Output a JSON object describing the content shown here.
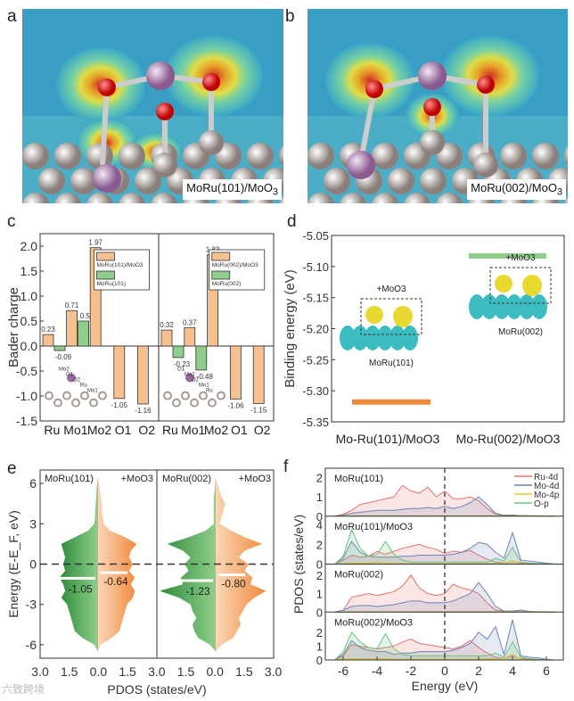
{
  "panels": {
    "a": {
      "label": "a",
      "tag": "MoRu(101)/MoO",
      "tag_sub": "3"
    },
    "b": {
      "label": "b",
      "tag": "MoRu(002)/MoO",
      "tag_sub": "3"
    },
    "c": {
      "label": "c"
    },
    "d": {
      "label": "d"
    },
    "e": {
      "label": "e"
    },
    "f": {
      "label": "f"
    }
  },
  "watermark": "六致跨境",
  "colors": {
    "orange": "#f7c08f",
    "orange_dark": "#ef8a3c",
    "green": "#8fce8a",
    "green_dark": "#2e8b3c",
    "ru4d": "#e5726b",
    "mo4d": "#6d83b8",
    "mo4p": "#f0c22a",
    "op": "#6cc47c"
  },
  "chart_data": [
    {
      "panel": "c",
      "type": "bar",
      "ylabel": "Bader charge",
      "ylim": [
        -1.5,
        2.25
      ],
      "yticks": [
        -1.5,
        -1.0,
        -0.5,
        0.0,
        0.5,
        1.0,
        1.5,
        2.0
      ],
      "groups": [
        {
          "categories": [
            "Ru",
            "Mo1",
            "Mo2",
            "O1",
            "O2"
          ],
          "series": [
            {
              "name": "MoRu(101)/MoO3",
              "values": [
                0.23,
                0.71,
                1.97,
                -1.05,
                -1.16
              ]
            },
            {
              "name": "MoRu(101)",
              "values": [
                -0.09,
                0.5,
                null,
                null,
                null
              ]
            }
          ],
          "inset_labels": [
            "Mo2",
            "O1",
            "O2",
            "Ru",
            "Mo1"
          ]
        },
        {
          "categories": [
            "Ru",
            "Mo1",
            "Mo2",
            "O1",
            "O2"
          ],
          "series": [
            {
              "name": "MoRu(002)/MoO3",
              "values": [
                0.32,
                0.37,
                1.83,
                -1.06,
                -1.15
              ]
            },
            {
              "name": "MoRu(002)",
              "values": [
                -0.23,
                -0.48,
                null,
                null,
                null
              ]
            }
          ],
          "inset_labels": [
            "O1",
            "Mo2",
            "O2",
            "Mo1",
            "Ru"
          ]
        }
      ]
    },
    {
      "panel": "d",
      "type": "bar",
      "ylabel": "Binding energy (eV)",
      "ylim": [
        -5.35,
        -5.05
      ],
      "yticks": [
        -5.35,
        -5.3,
        -5.25,
        -5.2,
        -5.15,
        -5.1,
        -5.05
      ],
      "categories": [
        "Mo-Ru(101)/MoO3",
        "Mo-Ru(002)/MoO3"
      ],
      "values": [
        -5.318,
        -5.083
      ],
      "insets": [
        {
          "title": "+MoO3",
          "label": "MoRu(101)"
        },
        {
          "title": "+MoO3",
          "label": "MoRu(002)"
        }
      ]
    },
    {
      "panel": "e",
      "type": "area",
      "ylabel": "Energy (E-E_F, eV)",
      "xlabel": "PDOS (states/eV)",
      "ylim": [
        -7,
        7
      ],
      "yticks": [
        -6,
        -3,
        0,
        3,
        6
      ],
      "xticks": [
        "3.0",
        "1.5",
        "0.0",
        "1.5",
        "3.0",
        "1.5",
        "0.0",
        "1.5",
        "3.0"
      ],
      "energies": [
        -6.5,
        -6,
        -5.5,
        -5,
        -4.5,
        -4,
        -3.5,
        -3,
        -2.5,
        -2,
        -1.5,
        -1,
        -0.5,
        0,
        0.5,
        1,
        1.5,
        2,
        2.5,
        3,
        3.5,
        4,
        4.5,
        5,
        5.5,
        6,
        6.5
      ],
      "subplots": [
        {
          "left_label": "MoRu(101)",
          "right_label": "+MoO3",
          "left_center": -1.05,
          "right_center": -0.64,
          "left": [
            0,
            0.2,
            0.8,
            1.2,
            1.3,
            1.4,
            1.5,
            1.6,
            1.9,
            1.7,
            1.8,
            2.0,
            1.7,
            1.8,
            1.7,
            1.8,
            1.9,
            1.2,
            0.5,
            0.2,
            0.15,
            0.15,
            0.12,
            0.1,
            0.08,
            0.05,
            0
          ],
          "right": [
            0,
            0.15,
            0.7,
            1.1,
            1.2,
            1.3,
            1.4,
            1.5,
            1.8,
            1.9,
            1.7,
            1.9,
            1.6,
            1.8,
            1.6,
            1.7,
            2.0,
            1.4,
            0.6,
            0.3,
            0.25,
            0.2,
            0.2,
            0.15,
            0.1,
            0.05,
            0
          ]
        },
        {
          "left_label": "MoRu(002)",
          "right_label": "+MoO3",
          "left_center": -1.23,
          "right_center": -0.8,
          "left": [
            0,
            0.3,
            0.9,
            1.1,
            1.2,
            1.0,
            1.2,
            1.3,
            1.9,
            2.9,
            1.7,
            1.8,
            1.4,
            1.6,
            1.3,
            1.7,
            2.5,
            1.4,
            0.5,
            0.1,
            0.1,
            0.1,
            0.1,
            0.1,
            0.05,
            0.03,
            0
          ],
          "right": [
            0,
            0.3,
            0.9,
            1.1,
            1.3,
            1.2,
            1.4,
            1.6,
            2.0,
            2.6,
            1.8,
            1.9,
            1.5,
            1.7,
            1.2,
            1.5,
            2.4,
            1.5,
            0.8,
            0.2,
            0.3,
            0.4,
            0.5,
            0.3,
            0.2,
            0.1,
            0
          ]
        }
      ]
    },
    {
      "panel": "f",
      "type": "area",
      "xlabel": "Energy (eV)",
      "ylabel": "PDOS (states/eV)",
      "xlim": [
        -7,
        7
      ],
      "xticks": [
        -6,
        -4,
        -2,
        0,
        2,
        4,
        6
      ],
      "legend": [
        "Ru-4d",
        "Mo-4d",
        "Mo-4p",
        "O-p"
      ],
      "legend_position": "top-right",
      "energies": [
        -6.5,
        -6,
        -5.5,
        -5,
        -4.5,
        -4,
        -3.5,
        -3,
        -2.5,
        -2,
        -1.5,
        -1,
        -0.5,
        0,
        0.5,
        1,
        1.5,
        2,
        2.5,
        3,
        3.5,
        4,
        4.5,
        5,
        5.5,
        6,
        6.5
      ],
      "subplots": [
        {
          "label": "MoRu(101)",
          "ylim": [
            0,
            2.3
          ],
          "yticks": [
            0,
            1,
            2
          ],
          "Ru-4d": [
            0,
            0.1,
            0.3,
            0.6,
            0.7,
            0.8,
            0.9,
            1.0,
            1.6,
            1.3,
            1.2,
            1.5,
            1.0,
            1.3,
            0.9,
            0.9,
            1.0,
            0.8,
            0.4,
            0.1,
            0.05,
            0.05,
            0.03,
            0.02,
            0.02,
            0.01,
            0
          ],
          "Mo-4d": [
            0,
            0.05,
            0.15,
            0.2,
            0.25,
            0.3,
            0.3,
            0.3,
            0.35,
            0.4,
            0.4,
            0.45,
            0.4,
            0.5,
            0.4,
            0.5,
            0.7,
            1.0,
            0.6,
            0.15,
            0.05,
            0.05,
            0.03,
            0.02,
            0.02,
            0.01,
            0
          ],
          "Mo-4p": [
            0,
            0.02,
            0.02,
            0.02,
            0.02,
            0.02,
            0.02,
            0.02,
            0.02,
            0.02,
            0.02,
            0.02,
            0.02,
            0.02,
            0.02,
            0.02,
            0.02,
            0.02,
            0.02,
            0.02,
            0.02,
            0.02,
            0.02,
            0.02,
            0.02,
            0.02,
            0
          ],
          "O-p": [
            0,
            0,
            0,
            0,
            0,
            0,
            0,
            0,
            0,
            0,
            0,
            0,
            0,
            0,
            0,
            0,
            0,
            0,
            0,
            0,
            0,
            0,
            0,
            0,
            0,
            0,
            0
          ]
        },
        {
          "label": "MoRu(101)/MoO3",
          "ylim": [
            0,
            4.5
          ],
          "yticks": [
            0,
            2,
            4
          ],
          "Ru-4d": [
            0,
            0.4,
            0.9,
            0.7,
            0.8,
            1.3,
            1.0,
            1.3,
            1.6,
            1.8,
            2.0,
            1.7,
            1.5,
            1.1,
            1.3,
            1.2,
            1.4,
            0.9,
            0.5,
            0.2,
            0.1,
            0.3,
            0.1,
            0.05,
            0.03,
            0.02,
            0
          ],
          "Mo-4d": [
            0,
            0.6,
            2.3,
            1.2,
            0.8,
            0.7,
            0.7,
            0.7,
            0.8,
            0.8,
            0.9,
            0.9,
            0.9,
            0.9,
            1.0,
            1.2,
            1.6,
            2.2,
            2.0,
            1.2,
            0.6,
            3.2,
            0.4,
            0.3,
            0.2,
            0.1,
            0
          ],
          "Mo-4p": [
            0,
            0.05,
            0.1,
            0.1,
            0.1,
            0.2,
            0.1,
            0.05,
            0.05,
            0.05,
            0.05,
            0.05,
            0.05,
            0.05,
            0.05,
            0.05,
            0.05,
            0.05,
            0.05,
            0.05,
            0.1,
            0.3,
            0.05,
            0.02,
            0.02,
            0.01,
            0
          ],
          "O-p": [
            0,
            0.8,
            3.5,
            1.6,
            0.8,
            1.0,
            2.3,
            1.0,
            0.4,
            0.2,
            0.2,
            0.2,
            0.2,
            0.2,
            0.2,
            0.2,
            0.2,
            0.2,
            0.2,
            0.6,
            0.3,
            1.7,
            0.2,
            0.1,
            0.05,
            0.02,
            0
          ]
        },
        {
          "label": "MoRu(002)",
          "ylim": [
            0,
            2.4
          ],
          "yticks": [
            0,
            1,
            2
          ],
          "Ru-4d": [
            0,
            0.1,
            0.8,
            0.9,
            1.0,
            0.9,
            1.0,
            1.1,
            1.4,
            2.0,
            1.3,
            1.0,
            0.9,
            1.0,
            1.5,
            1.3,
            1.2,
            1.0,
            0.5,
            0.1,
            0.05,
            0.05,
            0.1,
            0.03,
            0.02,
            0.01,
            0
          ],
          "Mo-4d": [
            0,
            0.1,
            0.3,
            0.35,
            0.35,
            0.3,
            0.35,
            0.4,
            0.5,
            0.6,
            0.6,
            0.5,
            0.5,
            0.5,
            0.6,
            0.8,
            1.0,
            1.6,
            1.0,
            0.3,
            0.05,
            0.05,
            0.1,
            0.03,
            0.02,
            0.01,
            0
          ],
          "Mo-4p": [
            0,
            0.02,
            0.02,
            0.02,
            0.02,
            0.02,
            0.02,
            0.02,
            0.02,
            0.02,
            0.02,
            0.02,
            0.02,
            0.02,
            0.02,
            0.02,
            0.02,
            0.02,
            0.02,
            0.02,
            0.02,
            0.02,
            0.02,
            0.02,
            0.02,
            0.02,
            0
          ],
          "O-p": [
            0,
            0,
            0,
            0,
            0,
            0,
            0,
            0,
            0,
            0,
            0,
            0,
            0,
            0,
            0,
            0,
            0,
            0,
            0,
            0,
            0,
            0,
            0,
            0,
            0,
            0,
            0
          ]
        },
        {
          "label": "MoRu(002)/MoO3",
          "ylim": [
            0,
            3.2
          ],
          "yticks": [
            0,
            1,
            2
          ],
          "Ru-4d": [
            0,
            0.3,
            1.1,
            1.0,
            0.9,
            0.8,
            0.9,
            1.0,
            1.3,
            1.5,
            1.2,
            1.1,
            1.0,
            0.9,
            0.8,
            1.0,
            1.4,
            0.9,
            0.5,
            0.2,
            0.1,
            0.3,
            0.1,
            0.05,
            0.03,
            0.02,
            0
          ],
          "Mo-4d": [
            0,
            0.4,
            1.4,
            0.9,
            0.7,
            0.6,
            0.6,
            0.4,
            0.5,
            0.5,
            0.6,
            0.6,
            0.6,
            0.6,
            0.7,
            0.9,
            1.2,
            2.0,
            1.5,
            2.4,
            0.4,
            2.9,
            0.3,
            0.2,
            0.15,
            0.05,
            0
          ],
          "Mo-4p": [
            0,
            0.05,
            0.1,
            0.1,
            0.1,
            0.1,
            0.1,
            0.05,
            0.05,
            0.05,
            0.05,
            0.05,
            0.05,
            0.05,
            0.05,
            0.05,
            0.05,
            0.05,
            0.1,
            0.1,
            0.1,
            0.4,
            0.05,
            0.02,
            0.02,
            0.01,
            0
          ],
          "O-p": [
            0,
            0.6,
            2.0,
            1.3,
            0.9,
            0.8,
            1.9,
            0.8,
            0.4,
            0.3,
            0.3,
            0.3,
            0.3,
            0.3,
            0.3,
            0.3,
            0.3,
            0.3,
            0.3,
            0.5,
            0.2,
            1.3,
            0.2,
            0.1,
            0.05,
            0.02,
            0
          ]
        }
      ]
    }
  ]
}
